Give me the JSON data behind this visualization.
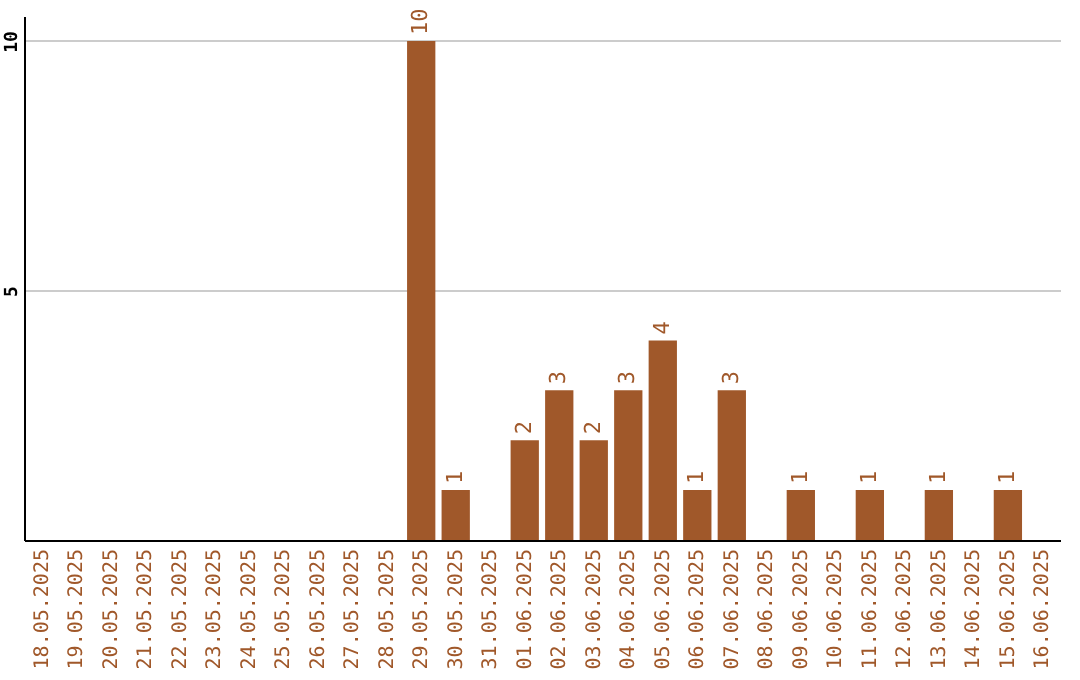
{
  "chart_data": {
    "type": "bar",
    "categories": [
      "18.05.2025",
      "19.05.2025",
      "20.05.2025",
      "21.05.2025",
      "22.05.2025",
      "23.05.2025",
      "24.05.2025",
      "25.05.2025",
      "26.05.2025",
      "27.05.2025",
      "28.05.2025",
      "29.05.2025",
      "30.05.2025",
      "31.05.2025",
      "01.06.2025",
      "02.06.2025",
      "03.06.2025",
      "04.06.2025",
      "05.06.2025",
      "06.06.2025",
      "07.06.2025",
      "08.06.2025",
      "09.06.2025",
      "10.06.2025",
      "11.06.2025",
      "12.06.2025",
      "13.06.2025",
      "14.06.2025",
      "15.06.2025",
      "16.06.2025"
    ],
    "values": [
      null,
      null,
      null,
      null,
      null,
      null,
      null,
      null,
      null,
      null,
      null,
      10,
      1,
      null,
      2,
      3,
      2,
      3,
      4,
      1,
      3,
      null,
      1,
      null,
      1,
      null,
      1,
      null,
      1,
      null
    ],
    "color": "#a0582a",
    "ylim": [
      0,
      10.5
    ],
    "yticks": [
      5,
      10
    ],
    "grid": "y",
    "data_labels": true
  }
}
